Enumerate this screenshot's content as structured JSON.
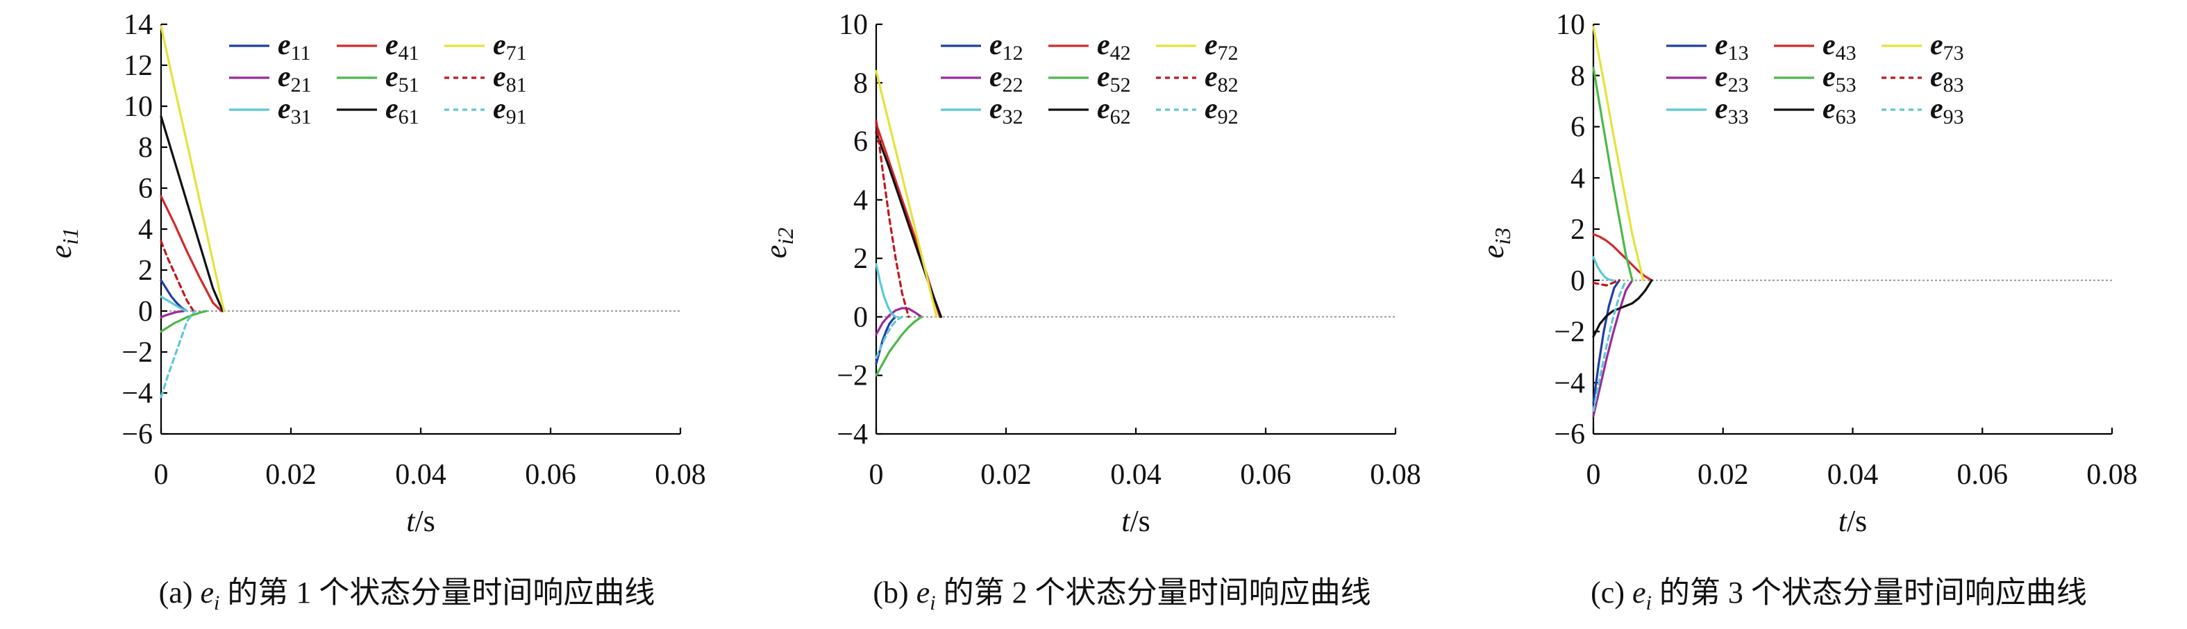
{
  "figure": {
    "panels": [
      {
        "caption_prefix": "(a)",
        "caption_var": "e",
        "caption_var_sub": "i",
        "caption_suffix": "的第 1 个状态分量时间响应曲线",
        "ylabel_var": "e",
        "ylabel_sub": "i1",
        "xlabel_var": "t",
        "xlabel_unit": "/s"
      },
      {
        "caption_prefix": "(b)",
        "caption_var": "e",
        "caption_var_sub": "i",
        "caption_suffix": "的第 2 个状态分量时间响应曲线",
        "ylabel_var": "e",
        "ylabel_sub": "i2",
        "xlabel_var": "t",
        "xlabel_unit": "/s"
      },
      {
        "caption_prefix": "(c)",
        "caption_var": "e",
        "caption_var_sub": "i",
        "caption_suffix": "的第 3 个状态分量时间响应曲线",
        "ylabel_var": "e",
        "ylabel_sub": "i3",
        "xlabel_var": "t",
        "xlabel_unit": "/s"
      }
    ]
  },
  "chart_data": [
    {
      "type": "line",
      "xlim": [
        0,
        0.08
      ],
      "ylim": [
        -6,
        14
      ],
      "xticks": [
        0,
        0.02,
        0.04,
        0.06,
        0.08
      ],
      "xtick_labels": [
        "0",
        "0.02",
        "0.04",
        "0.06",
        "0.08"
      ],
      "yticks": [
        -6,
        -4,
        -2,
        0,
        2,
        4,
        6,
        8,
        10,
        12,
        14
      ],
      "ytick_labels": [
        "−6",
        "−4",
        "−2",
        "0",
        "2",
        "4",
        "6",
        "8",
        "10",
        "12",
        "14"
      ],
      "legend_position": "top-center",
      "series": [
        {
          "sym": "e",
          "sub": "11",
          "color": "#1f3fa6",
          "dash": false,
          "x": [
            0,
            0.0008,
            0.0016,
            0.0024,
            0.0032,
            0.004
          ],
          "y": [
            1.5,
            1.1,
            0.7,
            0.4,
            0.15,
            0
          ]
        },
        {
          "sym": "e",
          "sub": "21",
          "color": "#9b2a9e",
          "dash": false,
          "x": [
            0,
            0.0008,
            0.0016,
            0.0024,
            0.0035
          ],
          "y": [
            -0.3,
            -0.2,
            -0.12,
            -0.05,
            0
          ]
        },
        {
          "sym": "e",
          "sub": "31",
          "color": "#5cc8d6",
          "dash": false,
          "x": [
            0,
            0.0008,
            0.0016,
            0.0024,
            0.0032,
            0.004
          ],
          "y": [
            0.7,
            0.55,
            0.4,
            0.25,
            0.1,
            0
          ]
        },
        {
          "sym": "e",
          "sub": "41",
          "color": "#d22a2a",
          "dash": false,
          "x": [
            0,
            0.002,
            0.004,
            0.006,
            0.008,
            0.0093
          ],
          "y": [
            5.6,
            4.3,
            2.9,
            1.6,
            0.4,
            0
          ]
        },
        {
          "sym": "e",
          "sub": "51",
          "color": "#4cb848",
          "dash": false,
          "x": [
            0,
            0.001,
            0.002,
            0.003,
            0.004,
            0.005,
            0.006,
            0.007
          ],
          "y": [
            -1.0,
            -0.8,
            -0.6,
            -0.45,
            -0.3,
            -0.18,
            -0.08,
            0
          ]
        },
        {
          "sym": "e",
          "sub": "61",
          "color": "#111111",
          "dash": false,
          "x": [
            0,
            0.002,
            0.004,
            0.006,
            0.008,
            0.0095
          ],
          "y": [
            9.5,
            7.4,
            5.3,
            3.2,
            1.1,
            0
          ]
        },
        {
          "sym": "e",
          "sub": "71",
          "color": "#e3e33a",
          "dash": false,
          "x": [
            0,
            0.002,
            0.004,
            0.006,
            0.008,
            0.0097
          ],
          "y": [
            13.9,
            11.0,
            8.2,
            5.3,
            2.4,
            0
          ]
        },
        {
          "sym": "e",
          "sub": "81",
          "color": "#c0181e",
          "dash": true,
          "x": [
            0,
            0.001,
            0.002,
            0.003,
            0.004,
            0.005
          ],
          "y": [
            3.4,
            2.6,
            1.9,
            1.2,
            0.5,
            0
          ]
        },
        {
          "sym": "e",
          "sub": "91",
          "color": "#5cc8d6",
          "dash": true,
          "x": [
            0,
            0.001,
            0.002,
            0.003,
            0.004,
            0.0052
          ],
          "y": [
            -4.2,
            -3.2,
            -2.3,
            -1.4,
            -0.5,
            0
          ]
        }
      ]
    },
    {
      "type": "line",
      "xlim": [
        0,
        0.08
      ],
      "ylim": [
        -4,
        10
      ],
      "xticks": [
        0,
        0.02,
        0.04,
        0.06,
        0.08
      ],
      "xtick_labels": [
        "0",
        "0.02",
        "0.04",
        "0.06",
        "0.08"
      ],
      "yticks": [
        -4,
        -2,
        0,
        2,
        4,
        6,
        8,
        10
      ],
      "ytick_labels": [
        "−4",
        "−2",
        "0",
        "2",
        "4",
        "6",
        "8",
        "10"
      ],
      "legend_position": "top-center",
      "series": [
        {
          "sym": "e",
          "sub": "12",
          "color": "#1f3fa6",
          "dash": false,
          "x": [
            0,
            0.0005,
            0.001,
            0.0015,
            0.002,
            0.0025,
            0.003
          ],
          "y": [
            -1.6,
            -1.2,
            -0.8,
            -0.5,
            -0.25,
            -0.1,
            0
          ]
        },
        {
          "sym": "e",
          "sub": "22",
          "color": "#9b2a9e",
          "dash": false,
          "x": [
            0,
            0.001,
            0.002,
            0.003,
            0.004,
            0.005,
            0.006,
            0.007
          ],
          "y": [
            -0.6,
            -0.2,
            0.05,
            0.22,
            0.3,
            0.28,
            0.15,
            0
          ]
        },
        {
          "sym": "e",
          "sub": "32",
          "color": "#5cc8d6",
          "dash": false,
          "x": [
            0,
            0.0006,
            0.0012,
            0.0018,
            0.0024,
            0.003
          ],
          "y": [
            1.8,
            1.2,
            0.7,
            0.35,
            0.1,
            0
          ]
        },
        {
          "sym": "e",
          "sub": "42",
          "color": "#d22a2a",
          "dash": false,
          "x": [
            0,
            0.002,
            0.004,
            0.006,
            0.008,
            0.0098
          ],
          "y": [
            6.6,
            5.3,
            4.0,
            2.7,
            1.3,
            0
          ]
        },
        {
          "sym": "e",
          "sub": "52",
          "color": "#4cb848",
          "dash": false,
          "x": [
            0,
            0.001,
            0.002,
            0.003,
            0.004,
            0.005,
            0.006,
            0.007
          ],
          "y": [
            -2.0,
            -1.6,
            -1.2,
            -0.9,
            -0.6,
            -0.35,
            -0.15,
            0
          ]
        },
        {
          "sym": "e",
          "sub": "62",
          "color": "#111111",
          "dash": false,
          "x": [
            0,
            0.002,
            0.004,
            0.006,
            0.008,
            0.01
          ],
          "y": [
            6.3,
            5.1,
            3.8,
            2.5,
            1.2,
            0
          ]
        },
        {
          "sym": "e",
          "sub": "72",
          "color": "#e3e33a",
          "dash": false,
          "x": [
            0,
            0.002,
            0.004,
            0.006,
            0.008,
            0.0093
          ],
          "y": [
            8.4,
            6.6,
            4.8,
            3.0,
            1.2,
            0
          ]
        },
        {
          "sym": "e",
          "sub": "82",
          "color": "#c0181e",
          "dash": true,
          "x": [
            0,
            0.001,
            0.002,
            0.003,
            0.004,
            0.005
          ],
          "y": [
            6.7,
            5.0,
            3.4,
            2.0,
            0.8,
            0
          ]
        },
        {
          "sym": "e",
          "sub": "92",
          "color": "#5cc8d6",
          "dash": true,
          "x": [
            0,
            0.0008,
            0.0016,
            0.0024,
            0.0032,
            0.004
          ],
          "y": [
            -1.4,
            -1.0,
            -0.6,
            -0.3,
            -0.1,
            0
          ]
        }
      ]
    },
    {
      "type": "line",
      "xlim": [
        0,
        0.08
      ],
      "ylim": [
        -6,
        10
      ],
      "xticks": [
        0,
        0.02,
        0.04,
        0.06,
        0.08
      ],
      "xtick_labels": [
        "0",
        "0.02",
        "0.04",
        "0.06",
        "0.08"
      ],
      "yticks": [
        -6,
        -4,
        -2,
        0,
        2,
        4,
        6,
        8,
        10
      ],
      "ytick_labels": [
        "−6",
        "−4",
        "−2",
        "0",
        "2",
        "4",
        "6",
        "8",
        "10"
      ],
      "legend_position": "top-center",
      "series": [
        {
          "sym": "e",
          "sub": "13",
          "color": "#1f3fa6",
          "dash": false,
          "x": [
            0,
            0.0008,
            0.0016,
            0.0024,
            0.0032,
            0.004
          ],
          "y": [
            -4.8,
            -3.3,
            -2.0,
            -1.0,
            -0.3,
            0
          ]
        },
        {
          "sym": "e",
          "sub": "23",
          "color": "#9b2a9e",
          "dash": false,
          "x": [
            0,
            0.001,
            0.002,
            0.003,
            0.004,
            0.005,
            0.006
          ],
          "y": [
            -5.3,
            -4.2,
            -3.1,
            -2.1,
            -1.2,
            -0.4,
            0
          ]
        },
        {
          "sym": "e",
          "sub": "33",
          "color": "#5cc8d6",
          "dash": false,
          "x": [
            0,
            0.0006,
            0.0012,
            0.0018,
            0.0024,
            0.003
          ],
          "y": [
            0.9,
            0.55,
            0.3,
            0.12,
            0.03,
            0
          ]
        },
        {
          "sym": "e",
          "sub": "43",
          "color": "#d22a2a",
          "dash": false,
          "x": [
            0,
            0.001,
            0.002,
            0.003,
            0.004,
            0.005,
            0.006,
            0.007,
            0.008,
            0.009
          ],
          "y": [
            1.8,
            1.7,
            1.55,
            1.35,
            1.1,
            0.85,
            0.6,
            0.35,
            0.15,
            0
          ]
        },
        {
          "sym": "e",
          "sub": "53",
          "color": "#4cb848",
          "dash": false,
          "x": [
            0,
            0.001,
            0.002,
            0.003,
            0.004,
            0.005,
            0.006
          ],
          "y": [
            8.3,
            6.8,
            5.3,
            3.8,
            2.4,
            1.0,
            0
          ]
        },
        {
          "sym": "e",
          "sub": "63",
          "color": "#111111",
          "dash": false,
          "x": [
            0,
            0.001,
            0.002,
            0.003,
            0.004,
            0.005,
            0.006,
            0.007,
            0.008,
            0.009
          ],
          "y": [
            -2.2,
            -1.7,
            -1.4,
            -1.2,
            -1.1,
            -1.0,
            -0.9,
            -0.7,
            -0.4,
            0
          ]
        },
        {
          "sym": "e",
          "sub": "73",
          "color": "#e3e33a",
          "dash": false,
          "x": [
            0,
            0.0015,
            0.003,
            0.0045,
            0.006,
            0.0077
          ],
          "y": [
            9.9,
            7.9,
            5.8,
            3.8,
            1.8,
            0
          ]
        },
        {
          "sym": "e",
          "sub": "83",
          "color": "#c0181e",
          "dash": true,
          "x": [
            0,
            0.001,
            0.002,
            0.003,
            0.004
          ],
          "y": [
            -0.1,
            -0.15,
            -0.2,
            -0.1,
            0
          ]
        },
        {
          "sym": "e",
          "sub": "93",
          "color": "#5cc8d6",
          "dash": true,
          "x": [
            0,
            0.001,
            0.002,
            0.003,
            0.004,
            0.005
          ],
          "y": [
            -5.1,
            -3.8,
            -2.6,
            -1.5,
            -0.6,
            0
          ]
        }
      ]
    }
  ]
}
